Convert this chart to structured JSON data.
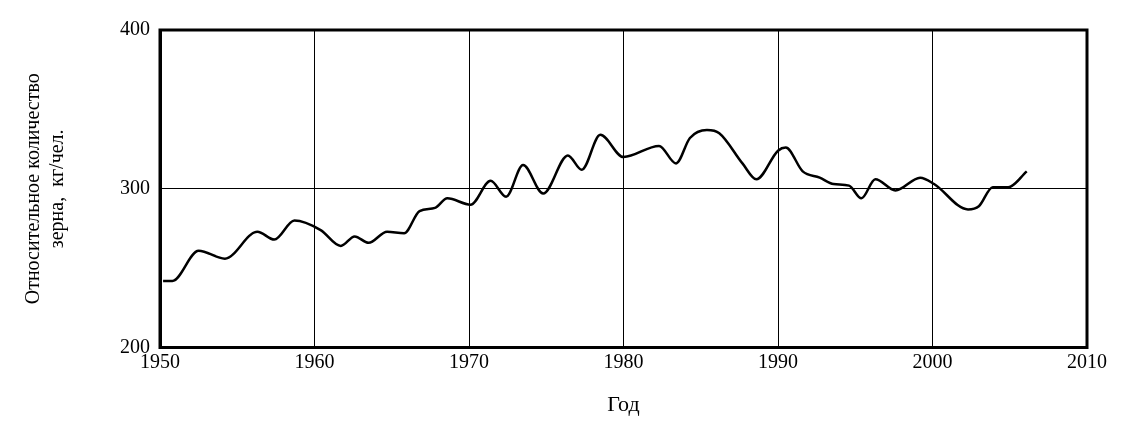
{
  "chart_data": {
    "type": "line",
    "xlabel": "Год",
    "ylabel": "Относительное количество\nзерна,  кг/чел.",
    "x": [
      1950.2,
      1950.8,
      1952.5,
      1954.2,
      1956.3,
      1957.4,
      1958.7,
      1960.4,
      1961.7,
      1962.6,
      1963.5,
      1964.7,
      1965.8,
      1966.8,
      1967.8,
      1968.6,
      1970.1,
      1971.4,
      1972.4,
      1973.5,
      1974.8,
      1976.4,
      1977.3,
      1978.5,
      1980,
      1982.3,
      1983.4,
      1984.3,
      1985.4,
      1986.2,
      1987.7,
      1988.6,
      1990,
      1990.5,
      1991.6,
      1992.7,
      1993.6,
      1994.6,
      1995.4,
      1996.3,
      1997.6,
      1999.2,
      2000.1,
      2002.3,
      2003,
      2003.9,
      2004.9,
      2006.1
    ],
    "series": [
      {
        "color": "#000000",
        "values": [
          242,
          242,
          261,
          256,
          273,
          268,
          280,
          274,
          264,
          270,
          266,
          273,
          272,
          286,
          288,
          294,
          290,
          305,
          295,
          315,
          297,
          321,
          312,
          334,
          320,
          327,
          316,
          332,
          337,
          335,
          316,
          306,
          324,
          326,
          311,
          307,
          303,
          302,
          294,
          306,
          299,
          307,
          303,
          287,
          289,
          301,
          301,
          311
        ]
      }
    ],
    "xlim": [
      1950,
      2010
    ],
    "xticks": [
      1950,
      1960,
      1970,
      1980,
      1990,
      2000,
      2010
    ],
    "ylim": [
      200,
      400
    ],
    "yticks": [
      200,
      300,
      400
    ],
    "grid": true,
    "legend": false,
    "marker": "none",
    "line_style": "solid"
  }
}
